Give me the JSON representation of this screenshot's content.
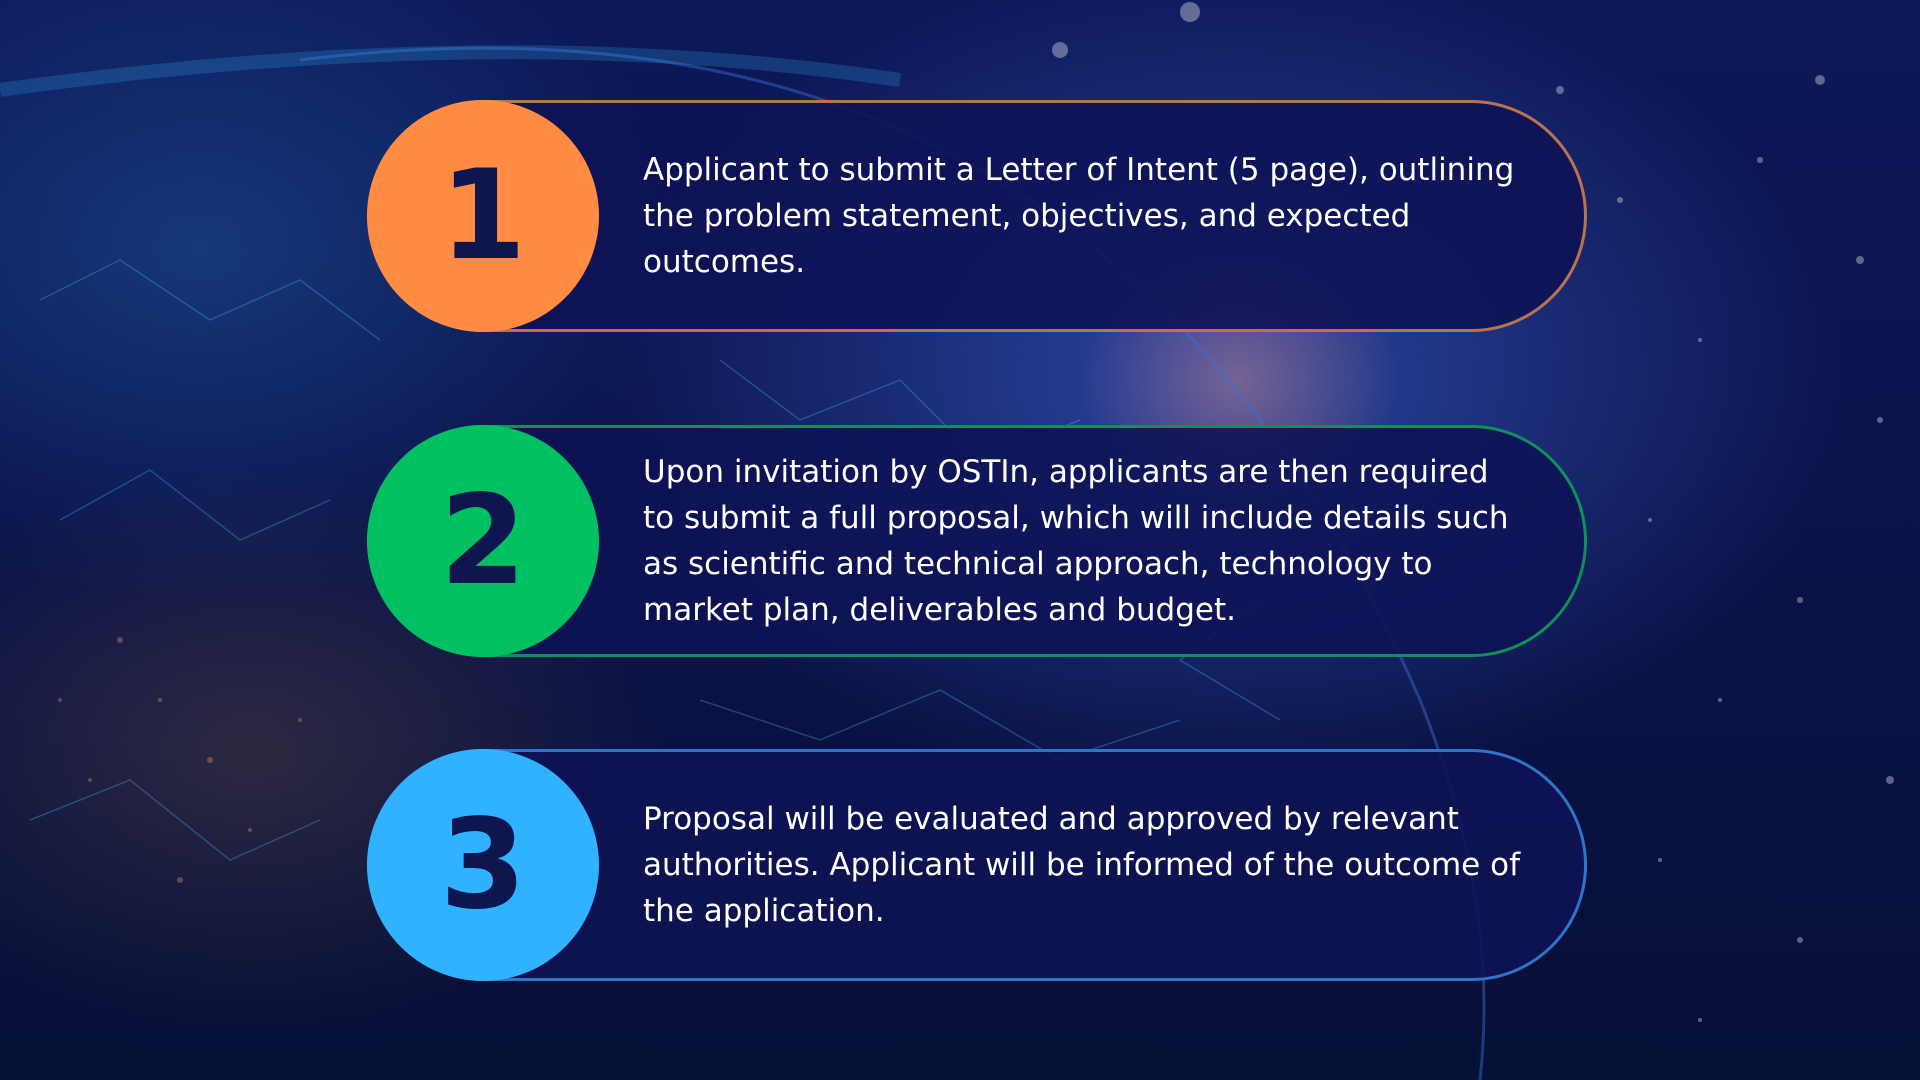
{
  "steps": [
    {
      "number": "1",
      "text": "Applicant to submit a Letter of Intent (5 page), outlining the problem statement, objectives, and expected outcomes.",
      "circle_color": "#ff8c42",
      "border_color": "#b9734f"
    },
    {
      "number": "2",
      "text": "Upon invitation by OSTIn, applicants are then required to submit a full proposal, which will include details such as scientific and technical approach, technology to market plan, deliverables and budget.",
      "circle_color": "#00c062",
      "border_color": "#0f8f5a"
    },
    {
      "number": "3",
      "text": "Proposal will be evaluated and approved by relevant authorities. Applicant will be informed of the outcome of the application.",
      "circle_color": "#31b2ff",
      "border_color": "#2e74c8"
    }
  ]
}
